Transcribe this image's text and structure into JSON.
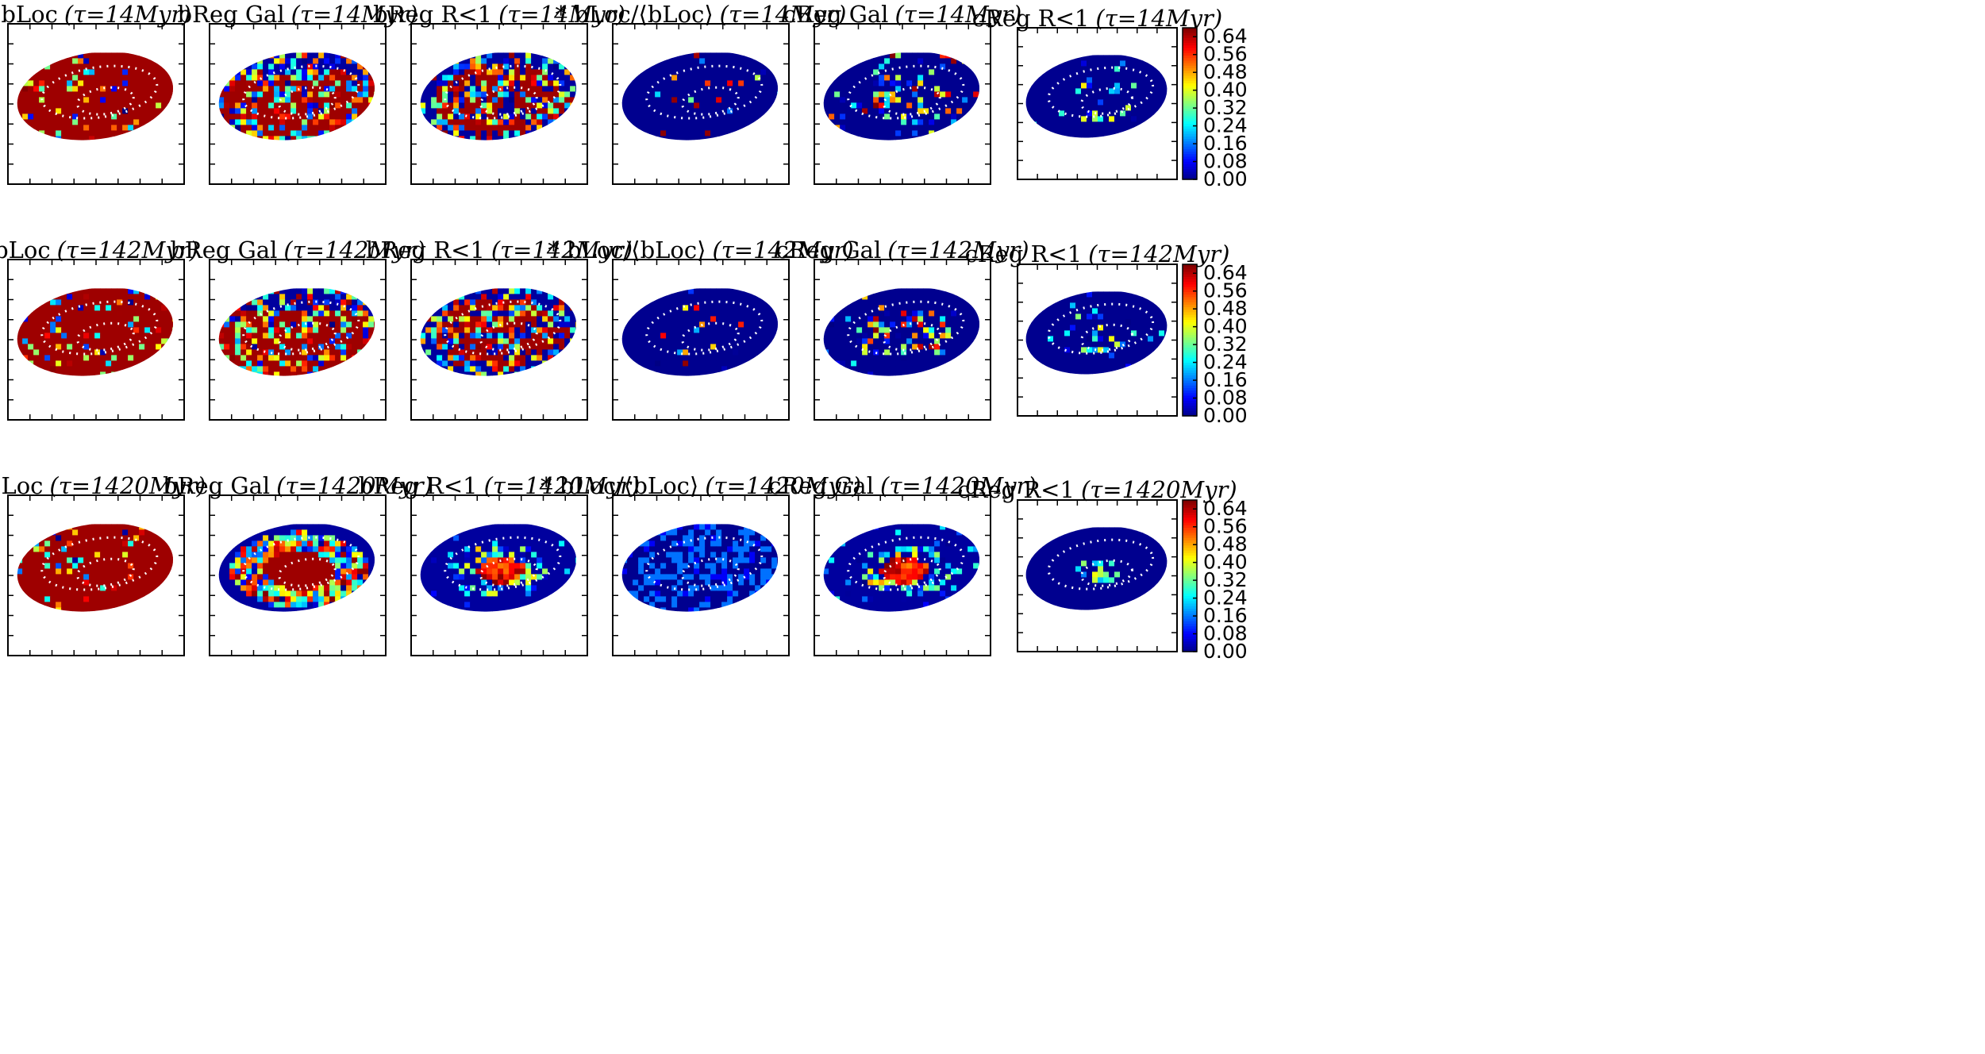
{
  "chart_data": {
    "type": "heatmap",
    "description_free": true,
    "layout": {
      "rows": 3,
      "columns": 6
    },
    "row_tau_labels": [
      "(τ=14Myr)",
      "(τ=142Myr)",
      "(τ=1420Myr)"
    ],
    "column_titles": [
      "bLoc",
      "bReg Gal",
      "bReg R<1",
      "* bLoc/⟨bLoc⟩",
      "cReg Gal",
      "cReg R<1"
    ],
    "panels": [
      [
        {
          "title": "bLoc",
          "tau": "(τ=14Myr)",
          "palette": "high",
          "dominant_value": 0.68
        },
        {
          "title": "bReg Gal",
          "tau": "(τ=14Myr)",
          "palette": "high-mix",
          "dominant_value": 0.6
        },
        {
          "title": "bReg R<1",
          "tau": "(τ=14Myr)",
          "palette": "mid-mix",
          "dominant_value": 0.45
        },
        {
          "title": "* bLoc/⟨bLoc⟩",
          "tau": "(τ=14Myr)",
          "palette": "low",
          "dominant_value": 0.02
        },
        {
          "title": "cReg Gal",
          "tau": "(τ=14Myr)",
          "palette": "low-mix",
          "dominant_value": 0.12
        },
        {
          "title": "cReg R<1",
          "tau": "(τ=14Myr)",
          "palette": "low-sparse",
          "dominant_value": 0.05
        }
      ],
      [
        {
          "title": "bLoc",
          "tau": "(τ=142Myr)",
          "palette": "high",
          "dominant_value": 0.66
        },
        {
          "title": "bReg Gal",
          "tau": "(τ=142Myr)",
          "palette": "high-mix",
          "dominant_value": 0.5
        },
        {
          "title": "bReg R<1",
          "tau": "(τ=142Myr)",
          "palette": "mid-mix",
          "dominant_value": 0.3
        },
        {
          "title": "* bLoc/⟨bLoc⟩",
          "tau": "(τ=142Myr)",
          "palette": "low",
          "dominant_value": 0.03
        },
        {
          "title": "cReg Gal",
          "tau": "(τ=142Myr)",
          "palette": "low-mix",
          "dominant_value": 0.1
        },
        {
          "title": "cReg R<1",
          "tau": "(τ=142Myr)",
          "palette": "low-sparse",
          "dominant_value": 0.04
        }
      ],
      [
        {
          "title": "bLoc",
          "tau": "(τ=1420Myr)",
          "palette": "high",
          "dominant_value": 0.66
        },
        {
          "title": "bReg Gal",
          "tau": "(τ=1420Myr)",
          "palette": "ring-high",
          "dominant_value": 0.55
        },
        {
          "title": "bReg R<1",
          "tau": "(τ=1420Myr)",
          "palette": "core-high",
          "dominant_value": 0.3
        },
        {
          "title": "* bLoc/⟨bLoc⟩",
          "tau": "(τ=1420Myr)",
          "palette": "cyan",
          "dominant_value": 0.14
        },
        {
          "title": "cReg Gal",
          "tau": "(τ=1420Myr)",
          "palette": "core-high",
          "dominant_value": 0.2
        },
        {
          "title": "cReg R<1",
          "tau": "(τ=1420Myr)",
          "palette": "core-low",
          "dominant_value": 0.06
        }
      ]
    ],
    "colorbar": {
      "colormap": "jet",
      "range": [
        0.0,
        0.68
      ],
      "ticks": [
        "0.64",
        "0.56",
        "0.48",
        "0.40",
        "0.32",
        "0.24",
        "0.16",
        "0.08",
        "0.00"
      ],
      "tick_values": [
        0.64,
        0.56,
        0.48,
        0.4,
        0.32,
        0.24,
        0.16,
        0.08,
        0.0
      ]
    },
    "grid": false,
    "xlabel": "",
    "ylabel": ""
  }
}
